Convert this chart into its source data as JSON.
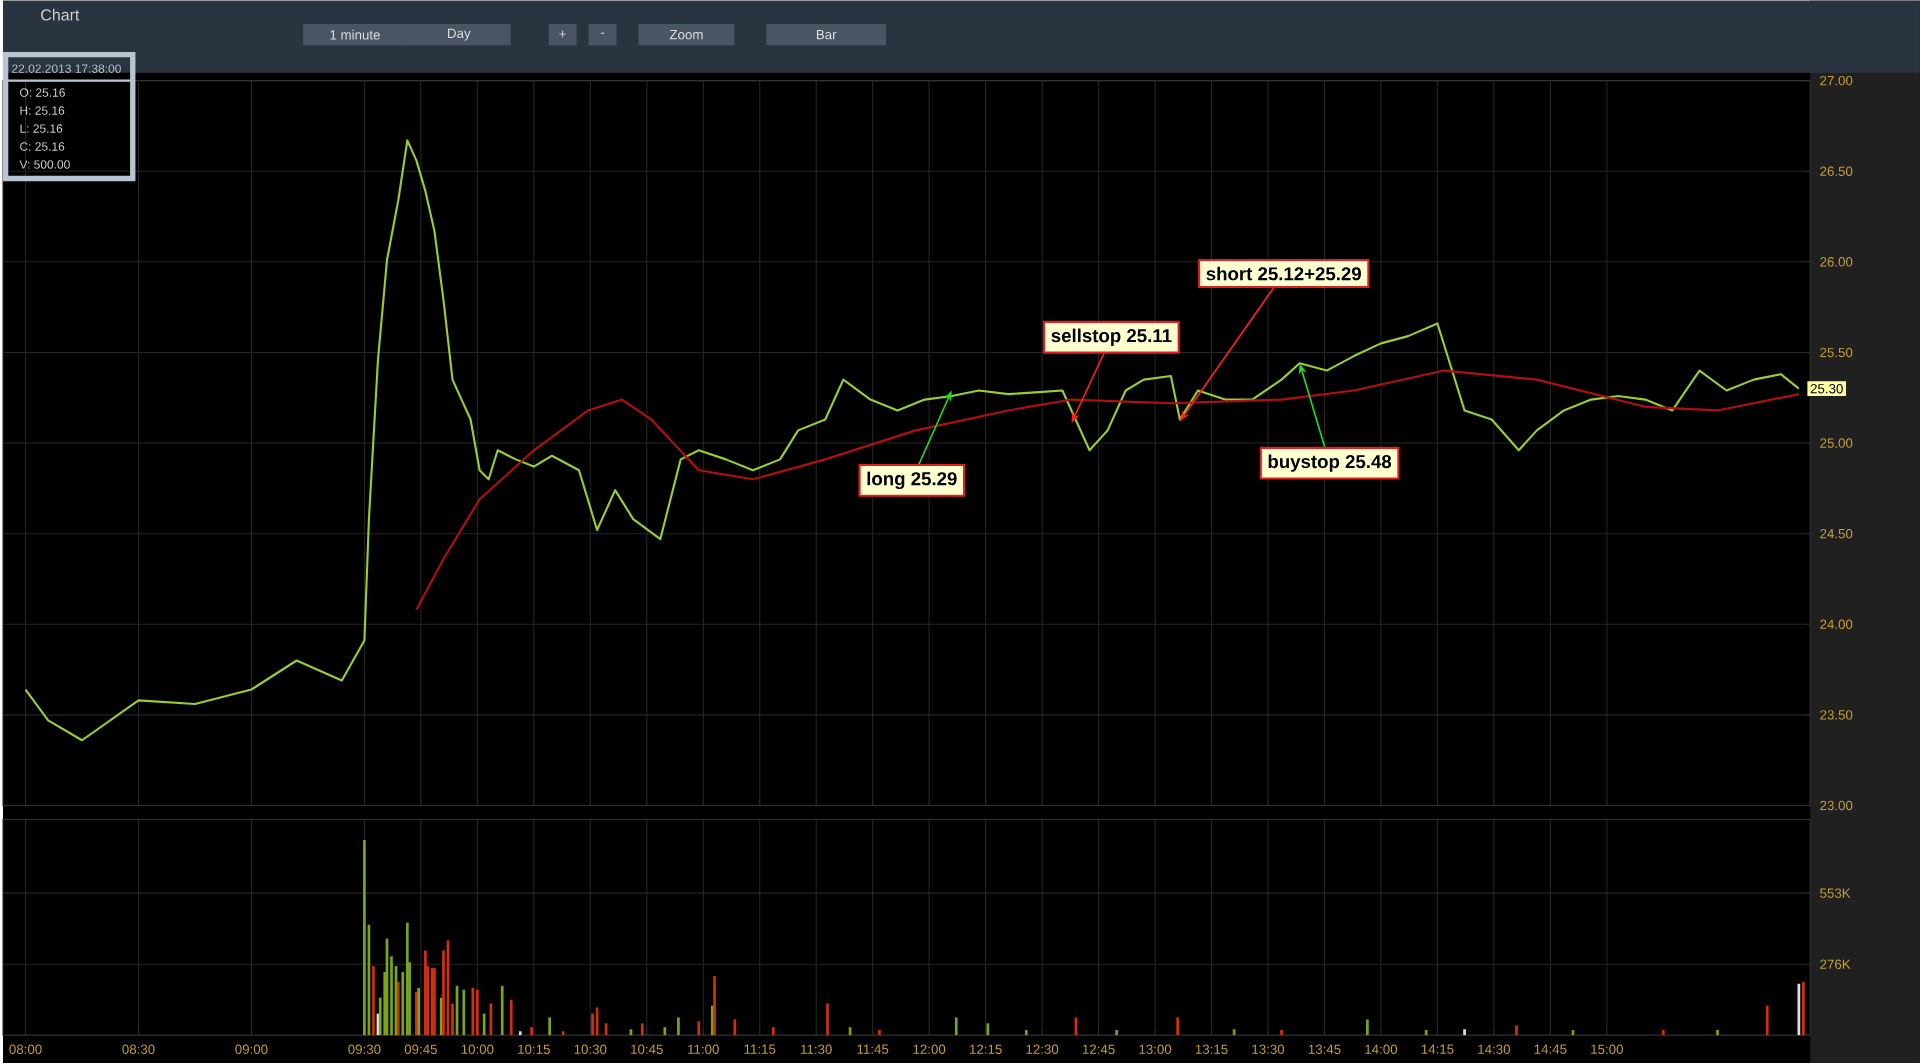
{
  "chart_data": [
    {
      "type": "line",
      "title": "Chart",
      "series": [
        {
          "color": "#9acd32",
          "x": [
            8.0,
            8.1,
            8.25,
            8.5,
            8.75,
            9.0,
            9.2,
            9.4,
            9.5,
            9.52,
            9.56,
            9.6,
            9.65,
            9.69,
            9.73,
            9.77,
            9.81,
            9.85,
            9.89,
            9.93,
            9.97,
            10.01,
            10.05,
            10.09,
            10.17,
            10.25,
            10.33,
            10.45,
            10.53,
            10.61,
            10.69,
            10.81,
            10.9,
            10.98,
            11.1,
            11.22,
            11.34,
            11.42,
            11.54,
            11.62,
            11.74,
            11.86,
            11.98,
            12.1,
            12.22,
            12.35,
            12.47,
            12.59,
            12.63,
            12.71,
            12.79,
            12.87,
            12.95,
            13.07,
            13.11,
            13.19,
            13.31,
            13.43,
            13.56,
            13.64,
            13.76,
            13.88,
            14.0,
            14.12,
            14.25,
            14.3,
            14.37,
            14.49,
            14.61,
            14.69,
            14.81,
            14.93,
            15.05,
            15.17,
            15.29,
            15.41,
            15.53,
            15.65,
            15.77,
            15.85
          ],
          "values": [
            23.64,
            23.47,
            23.36,
            23.58,
            23.56,
            23.64,
            23.8,
            23.69,
            23.91,
            24.58,
            25.46,
            26.01,
            26.34,
            26.67,
            26.56,
            26.39,
            26.17,
            25.79,
            25.35,
            25.24,
            25.13,
            24.85,
            24.8,
            24.96,
            24.91,
            24.87,
            24.93,
            24.85,
            24.52,
            24.74,
            24.58,
            24.47,
            24.91,
            24.96,
            24.91,
            24.85,
            24.91,
            25.07,
            25.13,
            25.35,
            25.24,
            25.18,
            25.24,
            25.26,
            25.29,
            25.27,
            25.28,
            25.29,
            25.18,
            24.96,
            25.07,
            25.29,
            25.35,
            25.37,
            25.13,
            25.29,
            25.24,
            25.24,
            25.35,
            25.44,
            25.4,
            25.48,
            25.55,
            25.59,
            25.66,
            25.46,
            25.18,
            25.13,
            24.96,
            25.07,
            25.18,
            25.24,
            25.26,
            25.24,
            25.18,
            25.4,
            25.29,
            25.35,
            25.38,
            25.3
          ]
        },
        {
          "color": "#b01010",
          "x": [
            9.73,
            9.85,
            10.01,
            10.25,
            10.49,
            10.64,
            10.77,
            10.98,
            11.22,
            11.54,
            11.94,
            12.35,
            12.63,
            13.07,
            13.56,
            13.88,
            14.28,
            14.69,
            15.17,
            15.49,
            15.85
          ],
          "values": [
            24.08,
            24.36,
            24.69,
            24.96,
            25.18,
            25.24,
            25.13,
            24.85,
            24.8,
            24.91,
            25.07,
            25.18,
            25.24,
            25.22,
            25.24,
            25.29,
            25.4,
            25.35,
            25.2,
            25.18,
            25.27
          ]
        }
      ],
      "xlim": [
        7.9,
        15.9
      ],
      "xticks": [
        {
          "value": 8.0,
          "label": null
        },
        {
          "value": 8.5,
          "label": null
        },
        {
          "value": 9.0,
          "label": null
        },
        {
          "value": 9.5,
          "label": null
        },
        {
          "value": 9.75,
          "label": null
        },
        {
          "value": 10.0,
          "label": null
        },
        {
          "value": 10.25,
          "label": null
        },
        {
          "value": 10.5,
          "label": null
        },
        {
          "value": 10.75,
          "label": null
        },
        {
          "value": 11.0,
          "label": null
        },
        {
          "value": 11.25,
          "label": null
        },
        {
          "value": 11.5,
          "label": null
        },
        {
          "value": 11.75,
          "label": null
        },
        {
          "value": 12.0,
          "label": null
        },
        {
          "value": 12.25,
          "label": null
        },
        {
          "value": 12.5,
          "label": null
        },
        {
          "value": 12.75,
          "label": null
        },
        {
          "value": 13.0,
          "label": null
        },
        {
          "value": 13.25,
          "label": null
        },
        {
          "value": 13.5,
          "label": null
        },
        {
          "value": 13.75,
          "label": null
        },
        {
          "value": 14.0,
          "label": null
        },
        {
          "value": 14.25,
          "label": null
        },
        {
          "value": 14.5,
          "label": null
        },
        {
          "value": 14.75,
          "label": null
        },
        {
          "value": 15.0,
          "label": null
        }
      ],
      "ylim": [
        23,
        27
      ],
      "yticks": [
        {
          "value": 23.0,
          "label": "23.00"
        },
        {
          "value": 23.5,
          "label": "23.50"
        },
        {
          "value": 24.0,
          "label": "24.00"
        },
        {
          "value": 24.5,
          "label": "24.50"
        },
        {
          "value": 25.0,
          "label": "25.00"
        },
        {
          "value": 25.5,
          "label": "25.50"
        },
        {
          "value": 26.0,
          "label": "26.00"
        },
        {
          "value": 26.5,
          "label": "26.50"
        },
        {
          "value": 27.0,
          "label": "27.00"
        }
      ],
      "tick_labels": "y",
      "grid": true,
      "marker": "none",
      "line_style": "solid",
      "annotations": [
        "1 minute",
        "Day",
        "+",
        "-",
        "Zoom",
        "Bar",
        "22.02.2013 17:38:00",
        "O: 25.16",
        "H: 25.16",
        "L: 25.16",
        "C: 25.16",
        "V: 500.00",
        {
          "text": "long 25.29",
          "x": 12.1,
          "y": 25.29
        },
        {
          "text": "sellstop 25.11",
          "x": 12.63,
          "y": 25.11
        },
        {
          "text": "short 25.12+25.29",
          "x": 13.11,
          "y": 25.12
        },
        {
          "text": "buystop 25.48",
          "x": 13.64,
          "y": 25.44
        },
        {
          "text": "25.30",
          "x": 15.85,
          "y": 25.3
        }
      ]
    },
    {
      "type": "bar",
      "x": [
        9.5,
        9.52,
        9.54,
        9.56,
        9.57,
        9.59,
        9.6,
        9.62,
        9.64,
        9.65,
        9.67,
        9.69,
        9.7,
        9.73,
        9.74,
        9.77,
        9.78,
        9.8,
        9.81,
        9.84,
        9.85,
        9.87,
        9.89,
        9.91,
        9.94,
        9.98,
        10.0,
        10.03,
        10.06,
        10.11,
        10.15,
        10.19,
        10.24,
        10.32,
        10.38,
        10.51,
        10.53,
        10.57,
        10.68,
        10.73,
        10.83,
        10.89,
        10.98,
        11.04,
        11.05,
        11.14,
        11.31,
        11.55,
        11.65,
        11.78,
        12.12,
        12.26,
        12.43,
        12.65,
        12.83,
        13.1,
        13.35,
        13.56,
        13.94,
        14.2,
        14.37,
        14.6,
        14.85,
        15.25,
        15.49,
        15.71,
        15.85,
        15.87
      ],
      "values": [
        760,
        430,
        269,
        84,
        146,
        246,
        376,
        307,
        269,
        207,
        246,
        438,
        284,
        169,
        184,
        330,
        269,
        261,
        261,
        146,
        330,
        369,
        123,
        192,
        177,
        184,
        177,
        84,
        123,
        192,
        138,
        15,
        31,
        69,
        15,
        84,
        108,
        46,
        23,
        46,
        31,
        69,
        54,
        115,
        230,
        61,
        31,
        123,
        31,
        20,
        69,
        46,
        20,
        69,
        20,
        69,
        23,
        20,
        61,
        20,
        23,
        38,
        20,
        20,
        20,
        115,
        200,
        207
      ],
      "colors": [
        "#7aa51a",
        "#7aa51a",
        "#d03010",
        "#e0e0e0",
        "#7aa51a",
        "#7aa51a",
        "#7aa51a",
        "#7aa51a",
        "#7aa51a",
        "#d03010",
        "#7aa51a",
        "#7aa51a",
        "#7aa51a",
        "#d03010",
        "#7aa51a",
        "#d03010",
        "#d03010",
        "#d03010",
        "#d03010",
        "#7aa51a",
        "#d03010",
        "#d03010",
        "#d03010",
        "#7aa51a",
        "#7aa51a",
        "#d03010",
        "#d03010",
        "#7aa51a",
        "#d03010",
        "#7aa51a",
        "#d03010",
        "#e0e0e0",
        "#d03010",
        "#7aa51a",
        "#d03010",
        "#d03010",
        "#d03010",
        "#d03010",
        "#7aa51a",
        "#d03010",
        "#7aa51a",
        "#7aa51a",
        "#d03010",
        "#7aa51a",
        "#d03010",
        "#d03010",
        "#d03010",
        "#d03010",
        "#7aa51a",
        "#d03010",
        "#7aa51a",
        "#7aa51a",
        "#7aa51a",
        "#d03010",
        "#7aa51a",
        "#d03010",
        "#7aa51a",
        "#d03010",
        "#7aa51a",
        "#7aa51a",
        "#e0e0e0",
        "#d03010",
        "#7aa51a",
        "#d03010",
        "#7aa51a",
        "#d03010",
        "#e0e0e0",
        "#d03010"
      ],
      "xlim": [
        7.9,
        15.9
      ],
      "xticks": [
        {
          "value": 8.0,
          "label": "08:00"
        },
        {
          "value": 8.5,
          "label": "08:30"
        },
        {
          "value": 9.0,
          "label": "09:00"
        },
        {
          "value": 9.5,
          "label": "09:30"
        },
        {
          "value": 9.75,
          "label": "09:45"
        },
        {
          "value": 10.0,
          "label": "10:00"
        },
        {
          "value": 10.25,
          "label": "10:15"
        },
        {
          "value": 10.5,
          "label": "10:30"
        },
        {
          "value": 10.75,
          "label": "10:45"
        },
        {
          "value": 11.0,
          "label": "11:00"
        },
        {
          "value": 11.25,
          "label": "11:15"
        },
        {
          "value": 11.5,
          "label": "11:30"
        },
        {
          "value": 11.75,
          "label": "11:45"
        },
        {
          "value": 12.0,
          "label": "12:00"
        },
        {
          "value": 12.25,
          "label": "12:15"
        },
        {
          "value": 12.5,
          "label": "12:30"
        },
        {
          "value": 12.75,
          "label": "12:45"
        },
        {
          "value": 13.0,
          "label": "13:00"
        },
        {
          "value": 13.25,
          "label": "13:15"
        },
        {
          "value": 13.5,
          "label": "13:30"
        },
        {
          "value": 13.75,
          "label": "13:45"
        },
        {
          "value": 14.0,
          "label": "14:00"
        },
        {
          "value": 14.25,
          "label": "14:15"
        },
        {
          "value": 14.5,
          "label": "14:30"
        },
        {
          "value": 14.75,
          "label": "14:45"
        },
        {
          "value": 15.0,
          "label": "15:00"
        }
      ],
      "ylim": [
        0,
        840
      ],
      "yticks": [
        {
          "value": 276,
          "label": "276K"
        },
        {
          "value": 553,
          "label": "553K"
        }
      ],
      "grid": true
    }
  ]
}
